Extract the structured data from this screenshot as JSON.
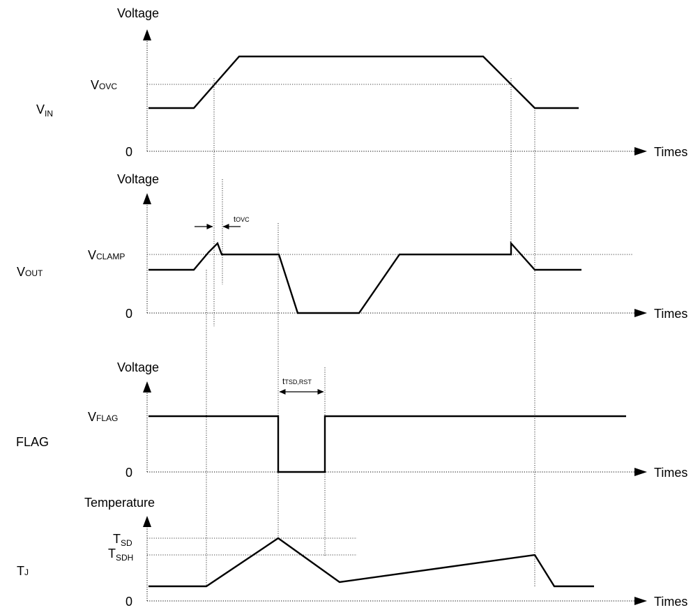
{
  "diagram": {
    "panels": [
      {
        "id": "vin",
        "signal": {
          "main": "V",
          "sub": "IN"
        },
        "y_axis_label": "Voltage",
        "x_axis_label": "Times",
        "zero_label": "0",
        "level_label": {
          "main": "V",
          "sub": "OVC"
        }
      },
      {
        "id": "vout",
        "signal": {
          "main": "V",
          "sub": "OUT"
        },
        "y_axis_label": "Voltage",
        "x_axis_label": "Times",
        "zero_label": "0",
        "level_label": {
          "main": "V",
          "sub": "CLAMP"
        },
        "annotation": {
          "main": "t",
          "sub": "OVC"
        }
      },
      {
        "id": "flag",
        "signal": {
          "main": "FLAG"
        },
        "y_axis_label": "Voltage",
        "x_axis_label": "Times",
        "zero_label": "0",
        "level_label": {
          "main": "V",
          "sub": "FLAG"
        },
        "annotation": {
          "main": "t",
          "sub": "TSD,RST"
        }
      },
      {
        "id": "tj",
        "signal": {
          "main": "T",
          "sub": "J"
        },
        "y_axis_label": "Temperature",
        "x_axis_label": "Times",
        "zero_label": "0",
        "level_labels": [
          {
            "main": "T",
            "sub": "SD"
          },
          {
            "main": "T",
            "sub": "SDH"
          }
        ]
      }
    ]
  }
}
